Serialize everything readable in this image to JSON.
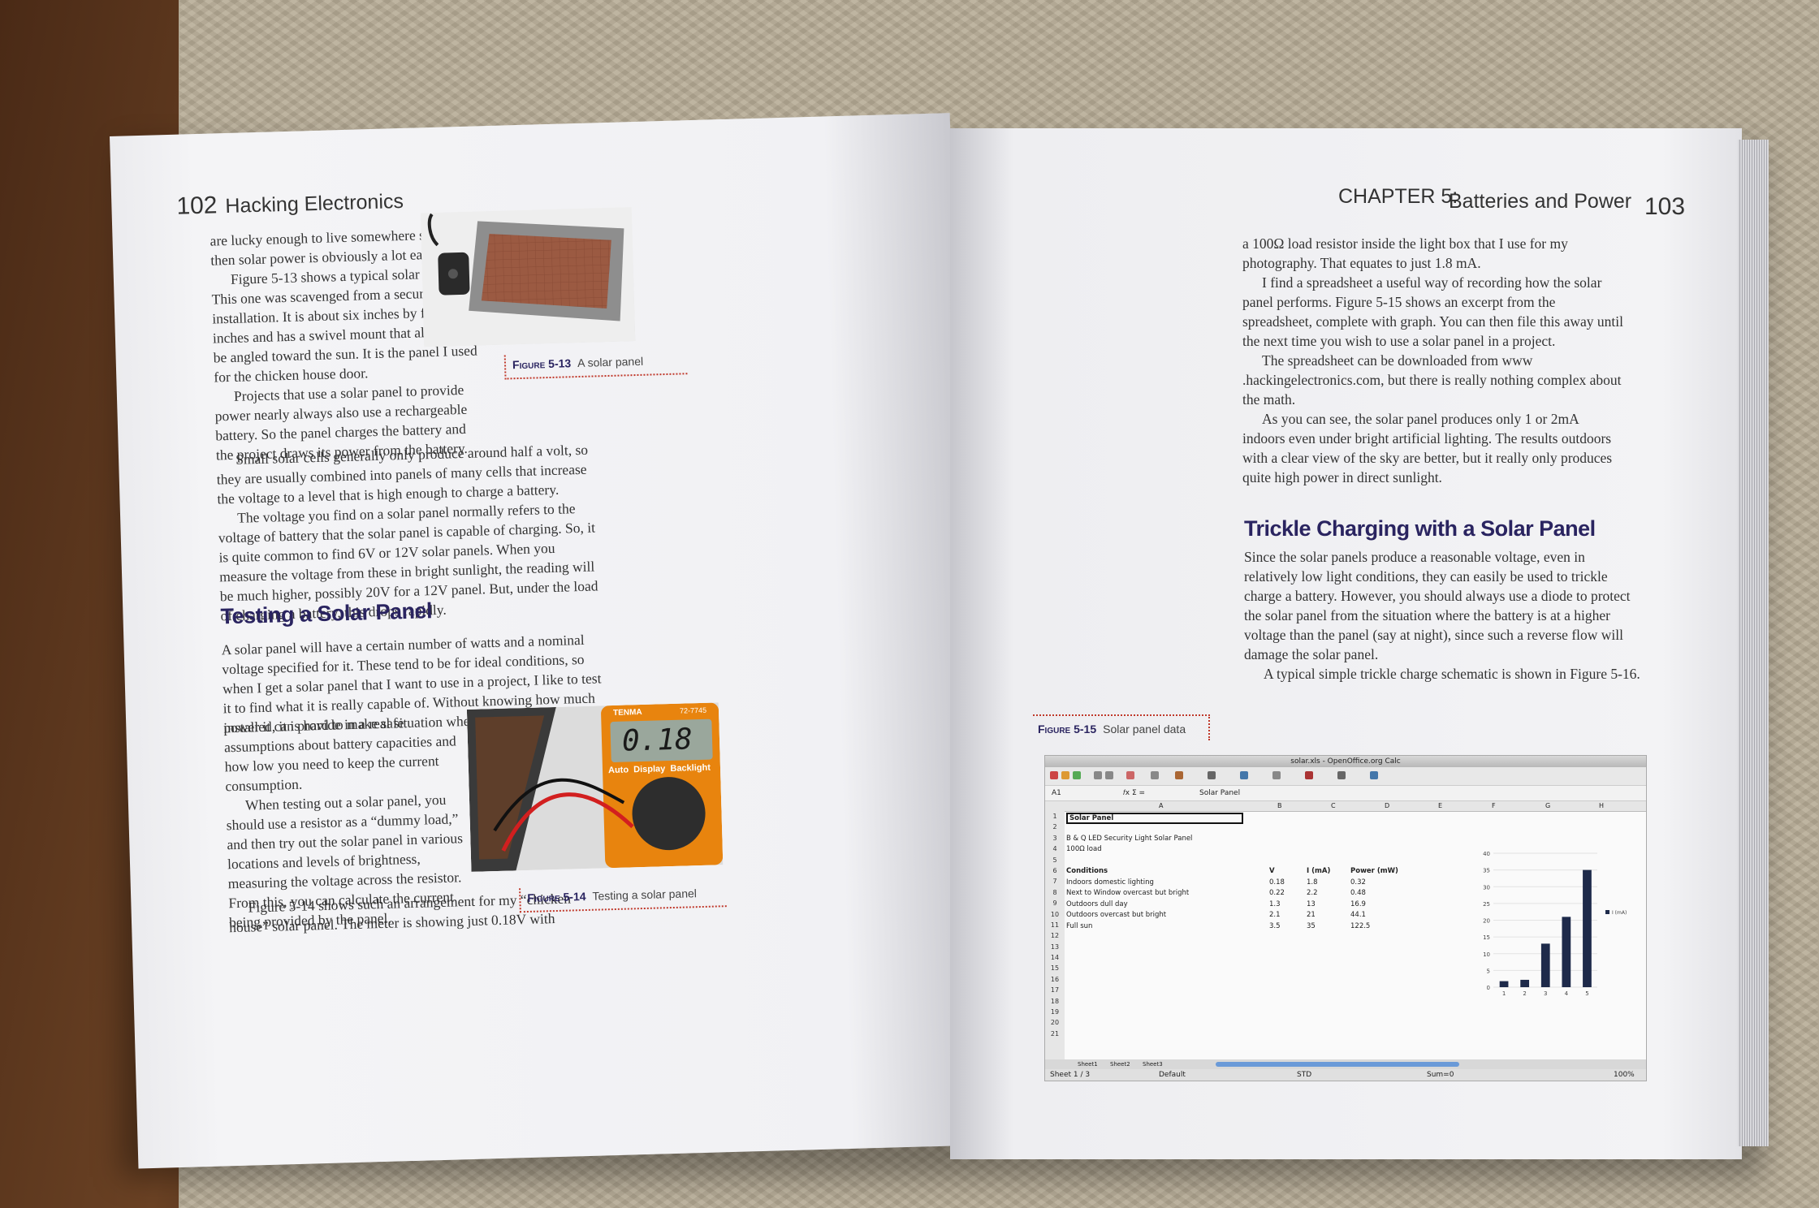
{
  "left_page": {
    "page_number": "102",
    "running_head": "Hacking Electronics",
    "paragraphs_top": [
      "are lucky enough to live somewhere sunny, then solar power is obviously a lot easier.",
      "Figure 5-13 shows a typical solar panel. This one was scavenged from a security light installation. It is about six inches by four inches and has a swivel mount that allows it to be angled toward the sun. It is the panel I used for the chicken house door.",
      "Projects that use a solar panel to provide power nearly always also use a rechargeable battery. So the panel charges the battery and the project draws its power from the battery.",
      "Small solar cells generally only produce around half a volt, so they are usually combined into panels of many cells that increase the voltage to a level that is high enough to charge a battery.",
      "The voltage you find on a solar panel normally refers to the voltage of battery that the solar panel is capable of charging. So, it is quite common to find 6V or 12V solar panels. When you measure the voltage from these in bright sunlight, the reading will be much higher, possibly 20V for a 12V panel. But, under the load of charging a battery, this drops rapidly."
    ],
    "section_heading": "Testing a Solar Panel",
    "paragraph_section_wide": "A solar panel will have a certain number of watts and a nominal voltage specified for it. These tend to be for ideal conditions, so when I get a solar panel that I want to use in a project, I like to test it to find what it is really capable of. Without knowing how much power it can provide in a real situation where it's",
    "paragraph_section_narrow": "installed, it is hard to make safe assumptions about battery capacities and how low you need to keep the current consumption.",
    "paragraph_testing": "When testing out a solar panel, you should use a resistor as a “dummy load,” and then try out the solar panel in various locations and levels of brightness, measuring the voltage across the resistor. From this, you can calculate the current being provided by the panel.",
    "paragraph_last": "Figure 5-14 shows such an arrangement for my “chicken house” solar panel. The meter is showing just 0.18V with",
    "figure_13": {
      "label": "Figure 5-13",
      "caption": "A solar panel"
    },
    "figure_14": {
      "label": "Figure 5-14",
      "caption": "Testing a solar panel"
    },
    "meter": {
      "brand": "TENMA",
      "model": "72-7745",
      "reading": "0.18",
      "button_labels": "Auto  Display  Backlight"
    }
  },
  "right_page": {
    "page_number": "103",
    "chapter_label": "CHAPTER 5:",
    "chapter_title": "Batteries and Power",
    "paragraphs_top": [
      "a 100Ω load resistor inside the light box that I use for my photography. That equates to just 1.8 mA.",
      "I find a spreadsheet a useful way of recording how the solar panel performs. Figure 5-15 shows an excerpt from the spreadsheet, complete with graph. You can then file this away until the next time you wish to use a solar panel in a project.",
      "The spreadsheet can be downloaded from www .hackingelectronics.com, but there is really nothing complex about the math.",
      "As you can see, the solar panel produces only 1 or 2mA indoors even under bright artificial lighting. The results outdoors with a clear view of the sky are better, but it really only produces quite high power in direct sunlight."
    ],
    "section_heading": "Trickle Charging with a Solar Panel",
    "paragraphs_section": [
      "Since the solar panels produce a reasonable voltage, even in relatively low light conditions, they can easily be used to trickle charge a battery. However, you should always use a diode to protect the solar panel from the situation where the battery is at a higher voltage than the panel (say at night), since such a reverse flow will damage the solar panel.",
      "A typical simple trickle charge schematic is shown in Figure 5-16."
    ],
    "figure_15": {
      "label": "Figure 5-15",
      "caption": "Solar panel data"
    }
  },
  "spreadsheet": {
    "window_title": "solar.xls - OpenOffice.org Calc",
    "name_box": "A1",
    "formula_value": "Solar Panel",
    "columns": [
      "A",
      "B",
      "C",
      "D",
      "E",
      "F",
      "G",
      "H"
    ],
    "row_numbers": [
      "1",
      "2",
      "3",
      "4",
      "5",
      "6",
      "7",
      "8",
      "9",
      "10",
      "11",
      "12",
      "13",
      "14",
      "15",
      "16",
      "17",
      "18",
      "19",
      "20",
      "21"
    ],
    "title_cell": "Solar Panel",
    "subtitle1": "B & Q LED Security Light Solar Panel",
    "subtitle2": "100Ω load",
    "headers": [
      "Conditions",
      "V",
      "I (mA)",
      "Power (mW)"
    ],
    "rows": [
      [
        "Indoors domestic lighting",
        "0.18",
        "1.8",
        "0.32"
      ],
      [
        "Next to Window overcast but bright",
        "0.22",
        "2.2",
        "0.48"
      ],
      [
        "Outdoors dull day",
        "1.3",
        "13",
        "16.9"
      ],
      [
        "Outdoors overcast but bright",
        "2.1",
        "21",
        "44.1"
      ],
      [
        "Full sun",
        "3.5",
        "35",
        "122.5"
      ]
    ],
    "sheet_tabs": [
      "Sheet1",
      "Sheet2",
      "Sheet3"
    ],
    "status": {
      "sheet": "Sheet 1 / 3",
      "style": "Default",
      "mode": "STD",
      "sum": "Sum=0",
      "zoom": "100%"
    }
  },
  "chart_data": {
    "type": "bar",
    "categories": [
      "1",
      "2",
      "3",
      "4",
      "5"
    ],
    "series": [
      {
        "name": "I (mA)",
        "values": [
          1.8,
          2.2,
          13,
          21,
          35
        ]
      }
    ],
    "ylim": [
      0,
      40
    ],
    "yticks": [
      "0",
      "5",
      "10",
      "15",
      "20",
      "25",
      "30",
      "35",
      "40"
    ],
    "grid": true,
    "legend": "right",
    "bar_color": "#1e2a4a"
  }
}
